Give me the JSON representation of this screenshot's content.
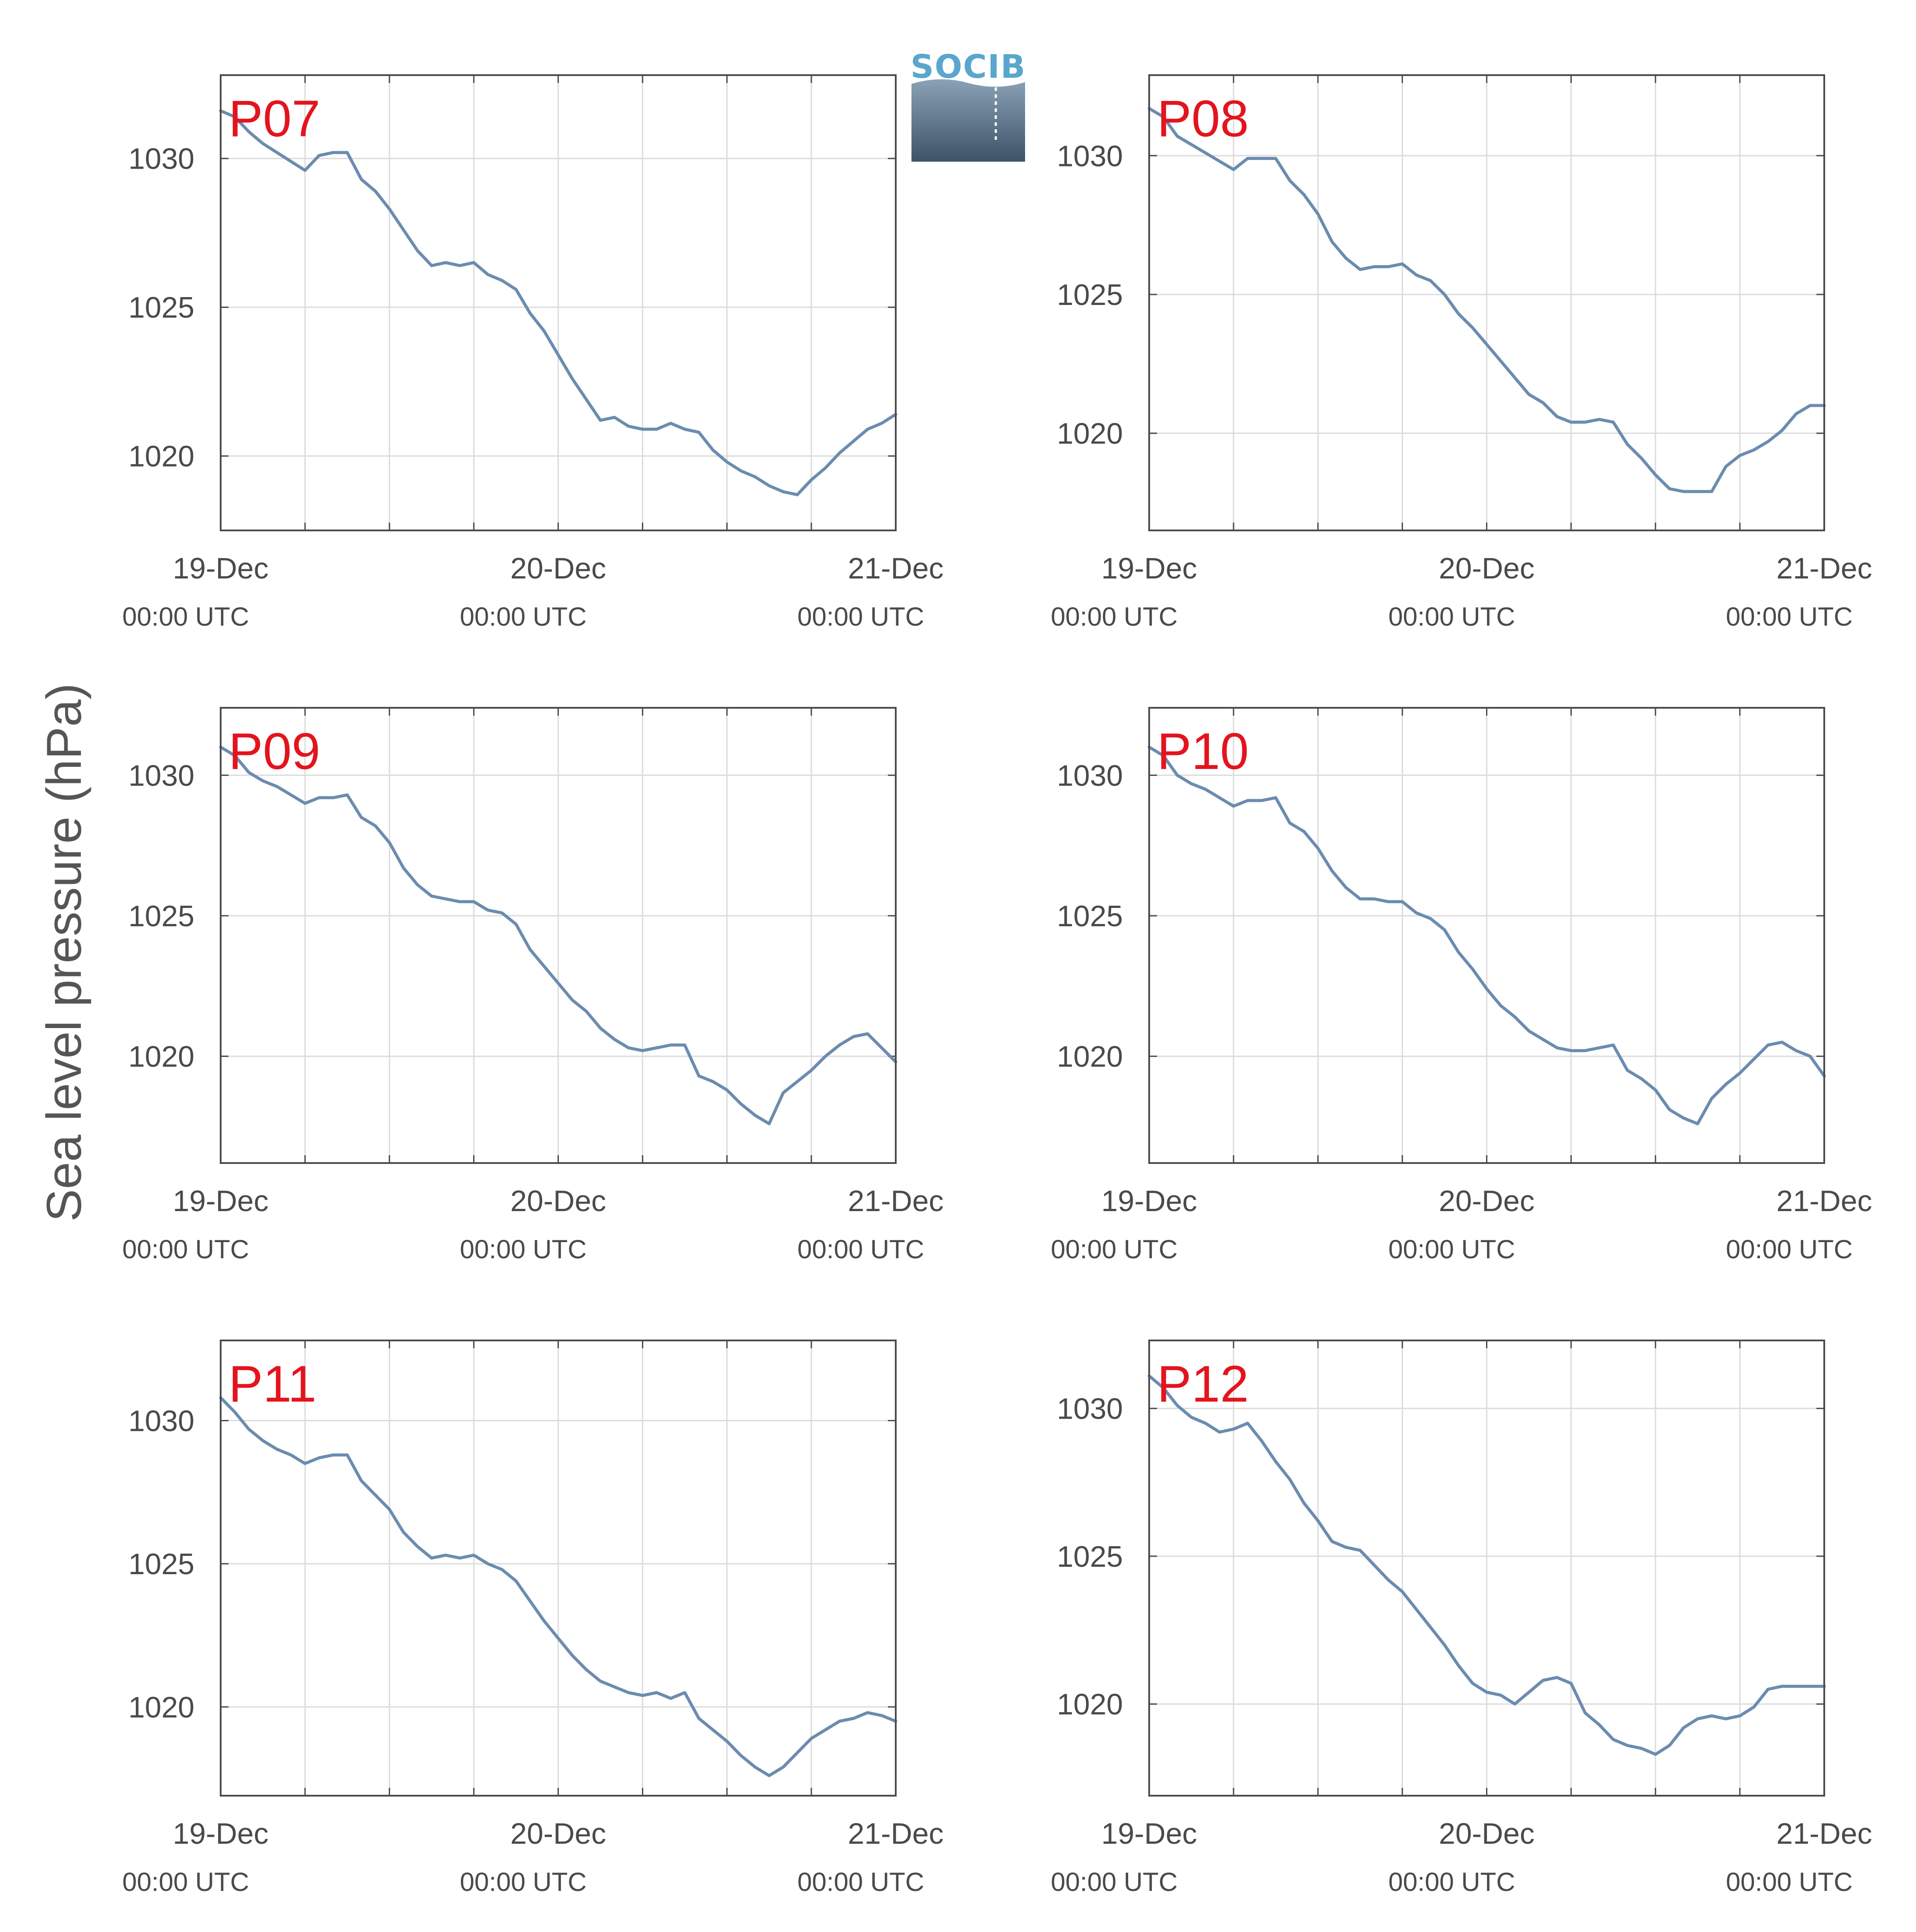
{
  "y_axis_label": "Sea level pressure (hPa)",
  "logo": {
    "text": "SOCIB",
    "colors": {
      "text": "#5aa6cc",
      "top": "#8aa2b6",
      "bottom": "#3e5266"
    }
  },
  "colors": {
    "line": "#6b8caf",
    "label": "#e3141e",
    "grid": "#dcdcdc",
    "axis": "#4a4a4a"
  },
  "chart_data": [
    {
      "type": "line",
      "label": "P07",
      "ylim": [
        1017.5,
        1032.8
      ],
      "yticks": [
        1020,
        1025,
        1030
      ],
      "xlim": [
        0,
        48
      ],
      "xticks": [
        {
          "x": 0,
          "label": "19-Dec",
          "sub": "00:00 UTC"
        },
        {
          "x": 24,
          "label": "20-Dec",
          "sub": "00:00 UTC"
        },
        {
          "x": 48,
          "label": "21-Dec",
          "sub": "00:00 UTC"
        }
      ],
      "x_hours": [
        0,
        1,
        2,
        3,
        4,
        5,
        6,
        7,
        8,
        9,
        10,
        11,
        12,
        13,
        14,
        15,
        16,
        17,
        18,
        19,
        20,
        21,
        22,
        23,
        24,
        25,
        26,
        27,
        28,
        29,
        30,
        31,
        32,
        33,
        34,
        35,
        36,
        37,
        38,
        39,
        40,
        41,
        42,
        43,
        44,
        45,
        46,
        47,
        48
      ],
      "values": [
        1031.6,
        1031.4,
        1030.9,
        1030.5,
        1030.2,
        1029.9,
        1029.6,
        1030.1,
        1030.2,
        1030.2,
        1029.3,
        1028.9,
        1028.3,
        1027.6,
        1026.9,
        1026.4,
        1026.5,
        1026.4,
        1026.5,
        1026.1,
        1025.9,
        1025.6,
        1024.8,
        1024.2,
        1023.4,
        1022.6,
        1021.9,
        1021.2,
        1021.3,
        1021.0,
        1020.9,
        1020.9,
        1021.1,
        1020.9,
        1020.8,
        1020.2,
        1019.8,
        1019.5,
        1019.3,
        1019.0,
        1018.8,
        1018.7,
        1019.2,
        1019.6,
        1020.1,
        1020.5,
        1020.9,
        1021.1,
        1021.4
      ]
    },
    {
      "type": "line",
      "label": "P08",
      "ylim": [
        1016.5,
        1032.9
      ],
      "yticks": [
        1020,
        1025,
        1030
      ],
      "xlim": [
        0,
        48
      ],
      "xticks": [
        {
          "x": 0,
          "label": "19-Dec",
          "sub": "00:00 UTC"
        },
        {
          "x": 24,
          "label": "20-Dec",
          "sub": "00:00 UTC"
        },
        {
          "x": 48,
          "label": "21-Dec",
          "sub": "00:00 UTC"
        }
      ],
      "x_hours": [
        0,
        1,
        2,
        3,
        4,
        5,
        6,
        7,
        8,
        9,
        10,
        11,
        12,
        13,
        14,
        15,
        16,
        17,
        18,
        19,
        20,
        21,
        22,
        23,
        24,
        25,
        26,
        27,
        28,
        29,
        30,
        31,
        32,
        33,
        34,
        35,
        36,
        37,
        38,
        39,
        40,
        41,
        42,
        43,
        44,
        45,
        46,
        47,
        48
      ],
      "values": [
        1031.7,
        1031.4,
        1030.7,
        1030.4,
        1030.1,
        1029.8,
        1029.5,
        1029.9,
        1029.9,
        1029.9,
        1029.1,
        1028.6,
        1027.9,
        1026.9,
        1026.3,
        1025.9,
        1026.0,
        1026.0,
        1026.1,
        1025.7,
        1025.5,
        1025.0,
        1024.3,
        1023.8,
        1023.2,
        1022.6,
        1022.0,
        1021.4,
        1021.1,
        1020.6,
        1020.4,
        1020.4,
        1020.5,
        1020.4,
        1019.6,
        1019.1,
        1018.5,
        1018.0,
        1017.9,
        1017.9,
        1017.9,
        1018.8,
        1019.2,
        1019.4,
        1019.7,
        1020.1,
        1020.7,
        1021.0,
        1021.0
      ]
    },
    {
      "type": "line",
      "label": "P09",
      "ylim": [
        1016.2,
        1032.4
      ],
      "yticks": [
        1020,
        1025,
        1030
      ],
      "xlim": [
        0,
        48
      ],
      "xticks": [
        {
          "x": 0,
          "label": "19-Dec",
          "sub": "00:00 UTC"
        },
        {
          "x": 24,
          "label": "20-Dec",
          "sub": "00:00 UTC"
        },
        {
          "x": 48,
          "label": "21-Dec",
          "sub": "00:00 UTC"
        }
      ],
      "x_hours": [
        0,
        1,
        2,
        3,
        4,
        5,
        6,
        7,
        8,
        9,
        10,
        11,
        12,
        13,
        14,
        15,
        16,
        17,
        18,
        19,
        20,
        21,
        22,
        23,
        24,
        25,
        26,
        27,
        28,
        29,
        30,
        31,
        32,
        33,
        34,
        35,
        36,
        37,
        38,
        39,
        40,
        41,
        42,
        43,
        44,
        45,
        46,
        47,
        48
      ],
      "values": [
        1031.0,
        1030.7,
        1030.1,
        1029.8,
        1029.6,
        1029.3,
        1029.0,
        1029.2,
        1029.2,
        1029.3,
        1028.5,
        1028.2,
        1027.6,
        1026.7,
        1026.1,
        1025.7,
        1025.6,
        1025.5,
        1025.5,
        1025.2,
        1025.1,
        1024.7,
        1023.8,
        1023.2,
        1022.6,
        1022.0,
        1021.6,
        1021.0,
        1020.6,
        1020.3,
        1020.2,
        1020.3,
        1020.4,
        1020.4,
        1019.3,
        1019.1,
        1018.8,
        1018.3,
        1017.9,
        1017.6,
        1018.7,
        1019.1,
        1019.5,
        1020.0,
        1020.4,
        1020.7,
        1020.8,
        1020.3,
        1019.8
      ]
    },
    {
      "type": "line",
      "label": "P10",
      "ylim": [
        1016.2,
        1032.4
      ],
      "yticks": [
        1020,
        1025,
        1030
      ],
      "xlim": [
        0,
        48
      ],
      "xticks": [
        {
          "x": 0,
          "label": "19-Dec",
          "sub": "00:00 UTC"
        },
        {
          "x": 24,
          "label": "20-Dec",
          "sub": "00:00 UTC"
        },
        {
          "x": 48,
          "label": "21-Dec",
          "sub": "00:00 UTC"
        }
      ],
      "x_hours": [
        0,
        1,
        2,
        3,
        4,
        5,
        6,
        7,
        8,
        9,
        10,
        11,
        12,
        13,
        14,
        15,
        16,
        17,
        18,
        19,
        20,
        21,
        22,
        23,
        24,
        25,
        26,
        27,
        28,
        29,
        30,
        31,
        32,
        33,
        34,
        35,
        36,
        37,
        38,
        39,
        40,
        41,
        42,
        43,
        44,
        45,
        46,
        47,
        48
      ],
      "values": [
        1031.0,
        1030.7,
        1030.0,
        1029.7,
        1029.5,
        1029.2,
        1028.9,
        1029.1,
        1029.1,
        1029.2,
        1028.3,
        1028.0,
        1027.4,
        1026.6,
        1026.0,
        1025.6,
        1025.6,
        1025.5,
        1025.5,
        1025.1,
        1024.9,
        1024.5,
        1023.7,
        1023.1,
        1022.4,
        1021.8,
        1021.4,
        1020.9,
        1020.6,
        1020.3,
        1020.2,
        1020.2,
        1020.3,
        1020.4,
        1019.5,
        1019.2,
        1018.8,
        1018.1,
        1017.8,
        1017.6,
        1018.5,
        1019.0,
        1019.4,
        1019.9,
        1020.4,
        1020.5,
        1020.2,
        1020.0,
        1019.3
      ]
    },
    {
      "type": "line",
      "label": "P11",
      "ylim": [
        1016.9,
        1032.8
      ],
      "yticks": [
        1020,
        1025,
        1030
      ],
      "xlim": [
        0,
        48
      ],
      "xticks": [
        {
          "x": 0,
          "label": "19-Dec",
          "sub": "00:00 UTC"
        },
        {
          "x": 24,
          "label": "20-Dec",
          "sub": "00:00 UTC"
        },
        {
          "x": 48,
          "label": "21-Dec",
          "sub": "00:00 UTC"
        }
      ],
      "x_hours": [
        0,
        1,
        2,
        3,
        4,
        5,
        6,
        7,
        8,
        9,
        10,
        11,
        12,
        13,
        14,
        15,
        16,
        17,
        18,
        19,
        20,
        21,
        22,
        23,
        24,
        25,
        26,
        27,
        28,
        29,
        30,
        31,
        32,
        33,
        34,
        35,
        36,
        37,
        38,
        39,
        40,
        41,
        42,
        43,
        44,
        45,
        46,
        47,
        48
      ],
      "values": [
        1030.8,
        1030.3,
        1029.7,
        1029.3,
        1029.0,
        1028.8,
        1028.5,
        1028.7,
        1028.8,
        1028.8,
        1027.9,
        1027.4,
        1026.9,
        1026.1,
        1025.6,
        1025.2,
        1025.3,
        1025.2,
        1025.3,
        1025.0,
        1024.8,
        1024.4,
        1023.7,
        1023.0,
        1022.4,
        1021.8,
        1021.3,
        1020.9,
        1020.7,
        1020.5,
        1020.4,
        1020.5,
        1020.3,
        1020.5,
        1019.6,
        1019.2,
        1018.8,
        1018.3,
        1017.9,
        1017.6,
        1017.9,
        1018.4,
        1018.9,
        1019.2,
        1019.5,
        1019.6,
        1019.8,
        1019.7,
        1019.5
      ]
    },
    {
      "type": "line",
      "label": "P12",
      "ylim": [
        1016.9,
        1032.3
      ],
      "yticks": [
        1020,
        1025,
        1030
      ],
      "xlim": [
        0,
        48
      ],
      "xticks": [
        {
          "x": 0,
          "label": "19-Dec",
          "sub": "00:00 UTC"
        },
        {
          "x": 24,
          "label": "20-Dec",
          "sub": "00:00 UTC"
        },
        {
          "x": 48,
          "label": "21-Dec",
          "sub": "00:00 UTC"
        }
      ],
      "x_hours": [
        0,
        1,
        2,
        3,
        4,
        5,
        6,
        7,
        8,
        9,
        10,
        11,
        12,
        13,
        14,
        15,
        16,
        17,
        18,
        19,
        20,
        21,
        22,
        23,
        24,
        25,
        26,
        27,
        28,
        29,
        30,
        31,
        32,
        33,
        34,
        35,
        36,
        37,
        38,
        39,
        40,
        41,
        42,
        43,
        44,
        45,
        46,
        47,
        48
      ],
      "values": [
        1031.1,
        1030.7,
        1030.1,
        1029.7,
        1029.5,
        1029.2,
        1029.3,
        1029.5,
        1028.9,
        1028.2,
        1027.6,
        1026.8,
        1026.2,
        1025.5,
        1025.3,
        1025.2,
        1024.7,
        1024.2,
        1023.8,
        1023.2,
        1022.6,
        1022.0,
        1021.3,
        1020.7,
        1020.4,
        1020.3,
        1020.0,
        1020.4,
        1020.8,
        1020.9,
        1020.7,
        1019.7,
        1019.3,
        1018.8,
        1018.6,
        1018.5,
        1018.3,
        1018.6,
        1019.2,
        1019.5,
        1019.6,
        1019.5,
        1019.6,
        1019.9,
        1020.5,
        1020.6,
        1020.6,
        1020.6,
        1020.6
      ]
    }
  ]
}
